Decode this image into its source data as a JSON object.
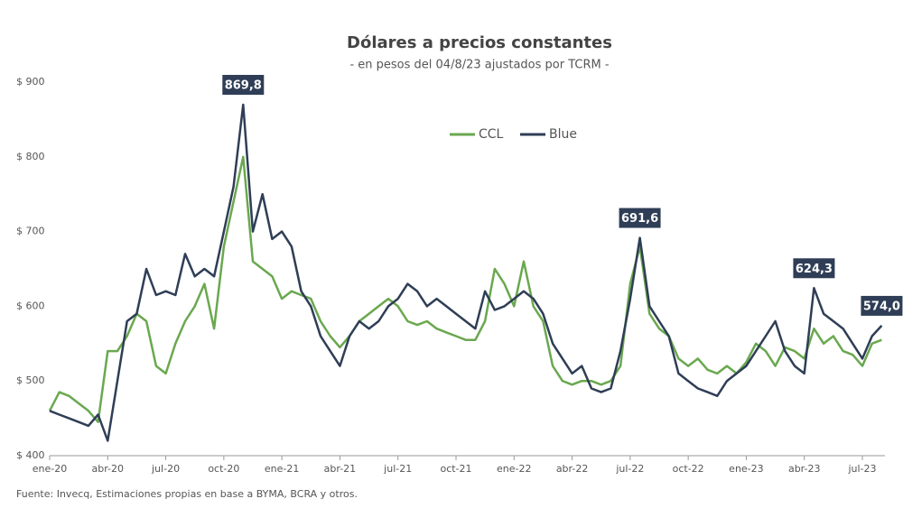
{
  "chart_data": {
    "type": "line",
    "title": "Dólares a precios constantes",
    "subtitle": "- en pesos del 04/8/23 ajustados por TCRM -",
    "source": "Fuente: Invecq, Estimaciones propias en base a BYMA, BCRA y otros.",
    "categories": [
      "ene-20",
      null,
      null,
      null,
      null,
      null,
      "abr-20",
      null,
      null,
      null,
      null,
      null,
      "jul-20",
      null,
      null,
      null,
      null,
      null,
      "oct-20",
      null,
      null,
      null,
      null,
      null,
      "ene-21",
      null,
      null,
      null,
      null,
      null,
      "abr-21",
      null,
      null,
      null,
      null,
      null,
      "jul-21",
      null,
      null,
      null,
      null,
      null,
      "oct-21",
      null,
      null,
      null,
      null,
      null,
      "ene-22",
      null,
      null,
      null,
      null,
      null,
      "abr-22",
      null,
      null,
      null,
      null,
      null,
      "jul-22",
      null,
      null,
      null,
      null,
      null,
      "oct-22",
      null,
      null,
      null,
      null,
      null,
      "ene-23",
      null,
      null,
      null,
      null,
      null,
      "abr-23",
      null,
      null,
      null,
      null,
      null,
      "jul-23",
      null,
      null
    ],
    "series": [
      {
        "name": "CCL",
        "color": "#6aa84f",
        "values": [
          460,
          485,
          480,
          470,
          460,
          445,
          540,
          540,
          560,
          590,
          580,
          520,
          510,
          550,
          580,
          600,
          630,
          570,
          680,
          740,
          800,
          660,
          650,
          640,
          610,
          620,
          615,
          610,
          580,
          560,
          545,
          560,
          580,
          590,
          600,
          610,
          600,
          580,
          575,
          580,
          570,
          565,
          560,
          555,
          555,
          580,
          650,
          630,
          600,
          660,
          600,
          580,
          520,
          500,
          495,
          500,
          500,
          495,
          500,
          520,
          630,
          680,
          590,
          570,
          560,
          530,
          520,
          530,
          515,
          510,
          520,
          510,
          525,
          550,
          540,
          520,
          545,
          540,
          530,
          570,
          550,
          560,
          540,
          535,
          520,
          550,
          555
        ]
      },
      {
        "name": "Blue",
        "color": "#2f3e56",
        "values": [
          460,
          455,
          450,
          445,
          440,
          455,
          420,
          500,
          580,
          590,
          650,
          615,
          620,
          615,
          670,
          640,
          650,
          640,
          700,
          760,
          869.8,
          700,
          750,
          690,
          700,
          680,
          620,
          600,
          560,
          540,
          520,
          560,
          580,
          570,
          580,
          600,
          610,
          630,
          620,
          600,
          610,
          600,
          590,
          580,
          570,
          620,
          595,
          600,
          610,
          620,
          610,
          590,
          550,
          530,
          510,
          520,
          490,
          485,
          490,
          540,
          610,
          691.6,
          600,
          580,
          560,
          510,
          500,
          490,
          485,
          480,
          500,
          510,
          520,
          540,
          560,
          580,
          540,
          520,
          510,
          624.3,
          590,
          580,
          570,
          550,
          530,
          560,
          574.0
        ],
        "value_labels": [
          null,
          null,
          null,
          null,
          null,
          null,
          null,
          null,
          null,
          null,
          null,
          null,
          null,
          null,
          null,
          null,
          null,
          null,
          null,
          null,
          "869,8",
          null,
          null,
          null,
          null,
          null,
          null,
          null,
          null,
          null,
          null,
          null,
          null,
          null,
          null,
          null,
          null,
          null,
          null,
          null,
          null,
          null,
          null,
          null,
          null,
          null,
          null,
          null,
          null,
          null,
          null,
          null,
          null,
          null,
          null,
          null,
          null,
          null,
          null,
          null,
          null,
          "691,6",
          null,
          null,
          null,
          null,
          null,
          null,
          null,
          null,
          null,
          null,
          null,
          null,
          null,
          null,
          null,
          null,
          null,
          "624,3",
          null,
          null,
          null,
          null,
          null,
          null,
          "574,0"
        ]
      }
    ],
    "ylim": [
      400,
      900
    ],
    "yticks": [
      {
        "value": 400,
        "label": "$ 400"
      },
      {
        "value": 500,
        "label": "$ 500"
      },
      {
        "value": 600,
        "label": "$ 600"
      },
      {
        "value": 700,
        "label": "$ 700"
      },
      {
        "value": 800,
        "label": "$ 800"
      },
      {
        "value": 900,
        "label": "$ 900"
      }
    ],
    "grid": false
  }
}
